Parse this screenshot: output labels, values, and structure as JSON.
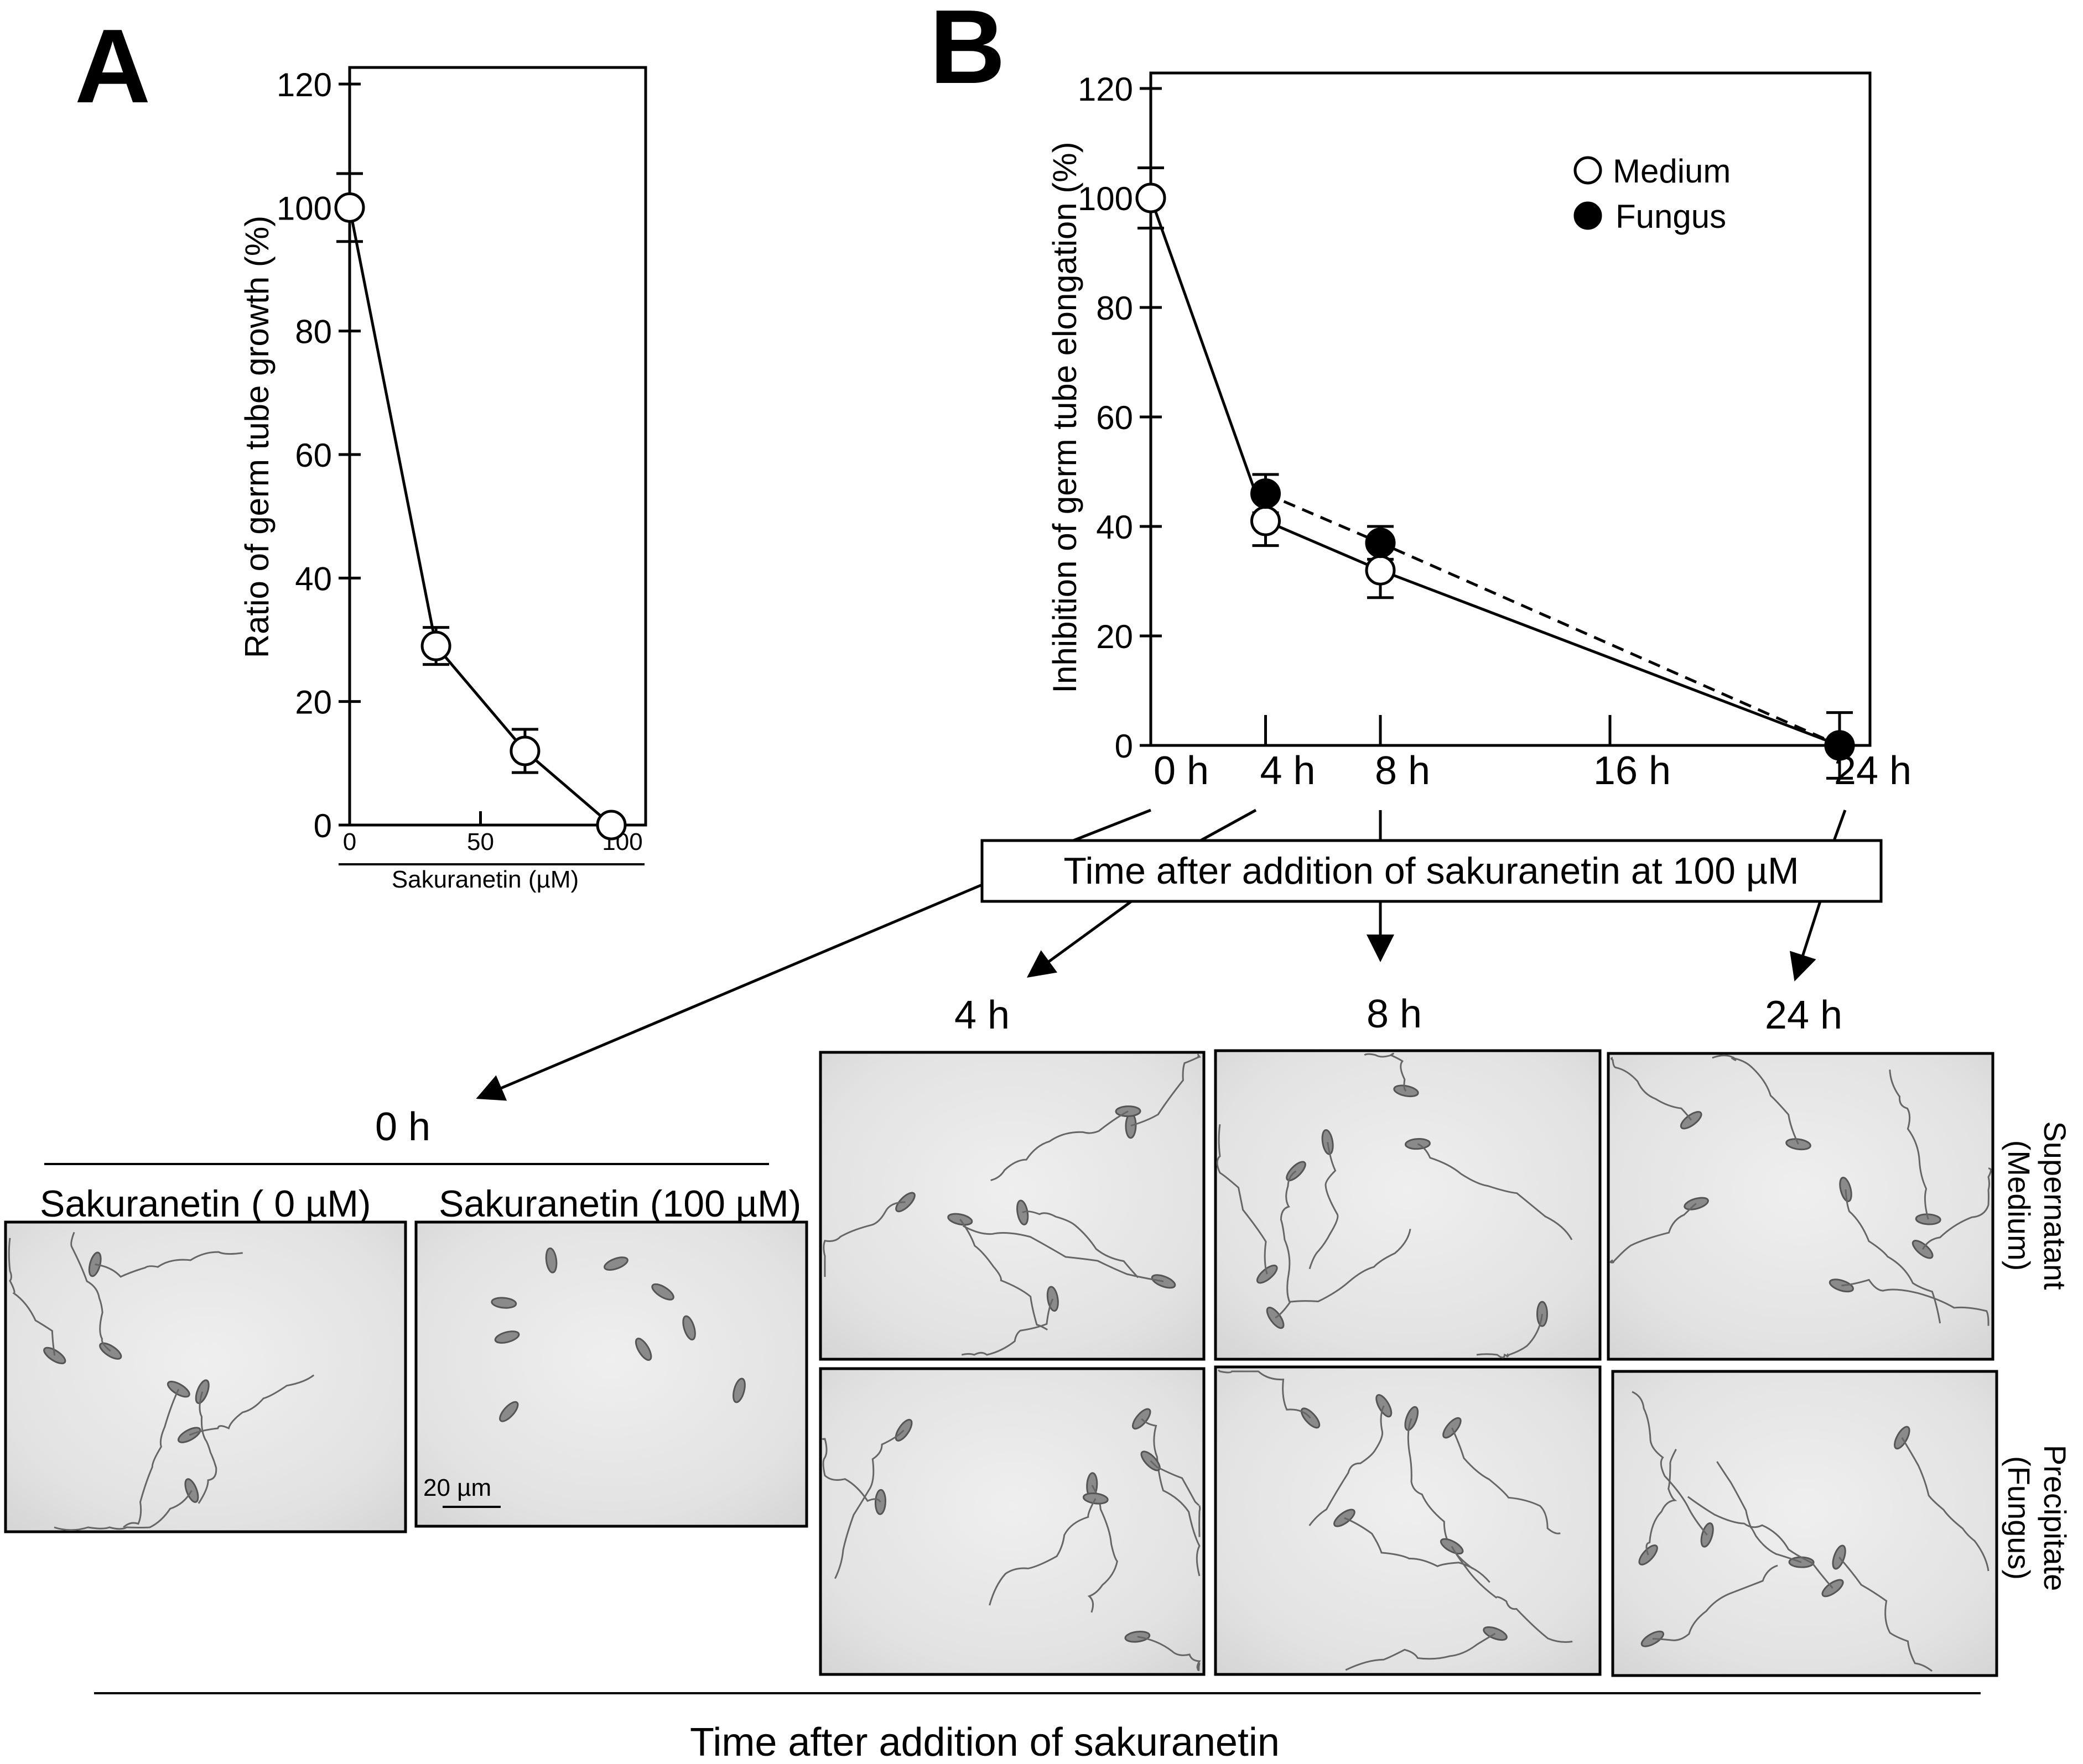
{
  "panel_letters": {
    "a": "A",
    "b": "B"
  },
  "chart_data": [
    {
      "type": "line",
      "panel": "A",
      "title": "",
      "xlabel": "Sakuranetin (µM)",
      "ylabel": "Ratio of germ tube growth (%)",
      "xlim": [
        0,
        100
      ],
      "ylim": [
        0,
        120
      ],
      "x_ticks": [
        0,
        50,
        100
      ],
      "y_ticks": [
        0,
        20,
        40,
        60,
        80,
        100,
        120
      ],
      "x_tick_labels": [
        "0",
        "50",
        "100"
      ],
      "y_tick_labels": [
        "0",
        "20",
        "40",
        "60",
        "80",
        "100",
        "120"
      ],
      "grid": false,
      "series": [
        {
          "x": [
            0,
            33,
            67,
            100
          ],
          "y": [
            100,
            29,
            12,
            0
          ],
          "error": [
            5.5,
            3,
            3.5,
            0
          ],
          "marker": "open-circle",
          "line": "solid"
        }
      ]
    },
    {
      "type": "line",
      "panel": "B",
      "title": "",
      "xlabel": "",
      "ylabel": "Inhibition of germ tube elongation (%)",
      "xlim": [
        0,
        24
      ],
      "ylim": [
        0,
        120
      ],
      "x_ticks": [
        0,
        4,
        8,
        16,
        24
      ],
      "y_ticks": [
        0,
        20,
        40,
        60,
        80,
        100,
        120
      ],
      "x_tick_labels": [
        "0 h",
        "4 h",
        "8 h",
        "16 h",
        "24 h"
      ],
      "y_tick_labels": [
        "0",
        "20",
        "40",
        "60",
        "80",
        "100",
        "120"
      ],
      "grid": false,
      "legend_position": "top-right",
      "series": [
        {
          "name": "Medium",
          "x": [
            0,
            4,
            8,
            24
          ],
          "y": [
            100,
            41,
            32,
            0
          ],
          "error": [
            5.5,
            4.5,
            5,
            6
          ],
          "marker": "open-circle",
          "line": "solid"
        },
        {
          "name": "Fungus",
          "x": [
            4,
            8,
            24
          ],
          "y": [
            46,
            37,
            0
          ],
          "error": [
            3.5,
            3,
            0
          ],
          "marker": "filled-circle",
          "line": "dashed"
        }
      ]
    }
  ],
  "annotations": {
    "box_label": "Time after addition of sakuranetin at 100 µM",
    "bottom_label": "Time after addition of sakuranetin",
    "scale_bar": "20 µm",
    "time_0": "0 h",
    "time_4": "4 h",
    "time_8": "8 h",
    "time_24": "24 h",
    "sak_0": "Sakuranetin  ( 0 µM)",
    "sak_100": "Sakuranetin  (100 µM)",
    "supernatant": "Supernatant",
    "supernatant_sub": "(Medium)",
    "precipitate": "Precipitate",
    "precipitate_sub": "(Fungus)"
  }
}
